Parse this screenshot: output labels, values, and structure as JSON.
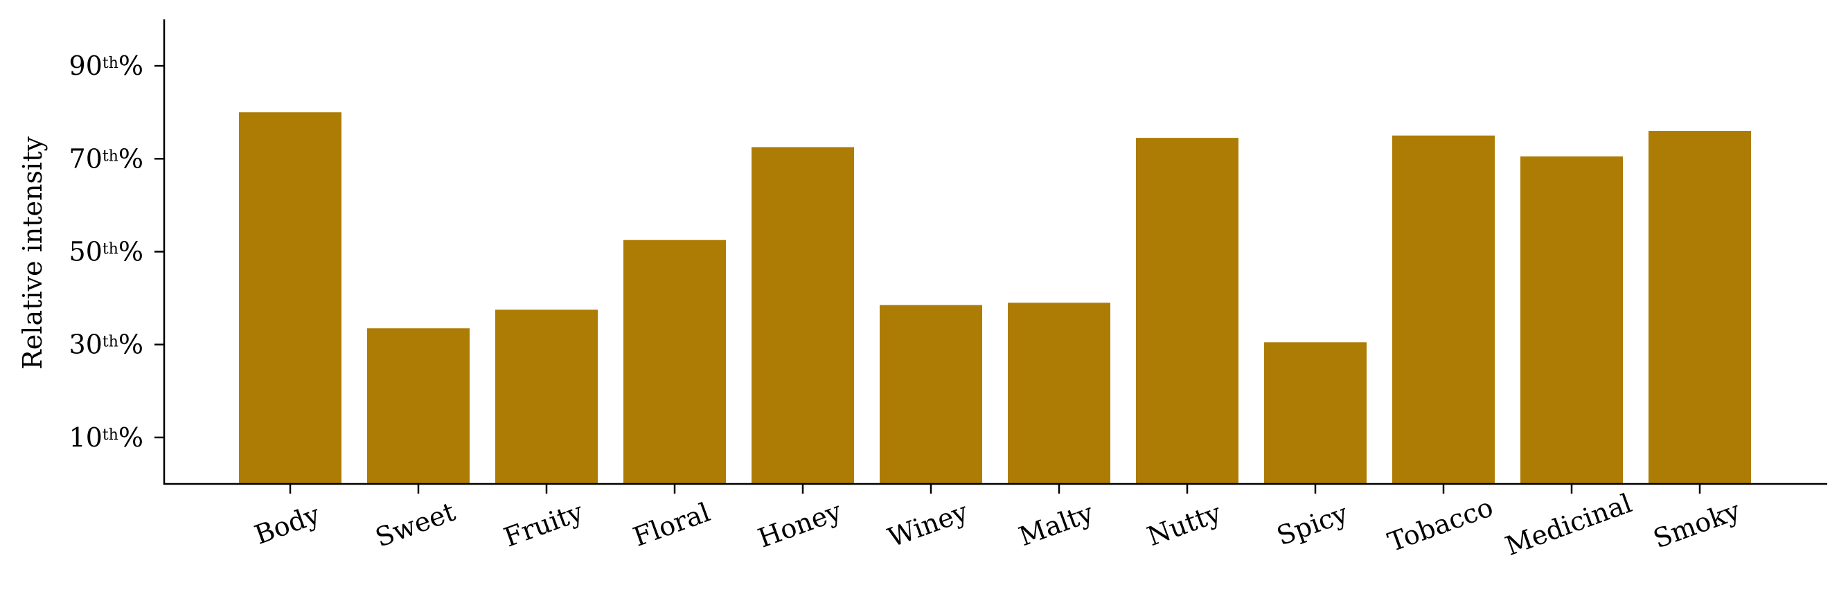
{
  "chart_data": {
    "type": "bar",
    "title": "",
    "xlabel": "",
    "ylabel": "Relative intensity",
    "categories": [
      "Body",
      "Sweet",
      "Fruity",
      "Floral",
      "Honey",
      "Winey",
      "Malty",
      "Nutty",
      "Spicy",
      "Tobacco",
      "Medicinal",
      "Smoky"
    ],
    "values": [
      80,
      33.5,
      37.5,
      52.5,
      72.5,
      38.5,
      39,
      74.5,
      30.5,
      75,
      70.5,
      76
    ],
    "ylim": [
      0,
      100
    ],
    "yticks": [
      {
        "value": 10,
        "base": "10",
        "sup": "th",
        "suffix": "%"
      },
      {
        "value": 30,
        "base": "30",
        "sup": "th",
        "suffix": "%"
      },
      {
        "value": 50,
        "base": "50",
        "sup": "th",
        "suffix": "%"
      },
      {
        "value": 70,
        "base": "70",
        "sup": "th",
        "suffix": "%"
      },
      {
        "value": 90,
        "base": "90",
        "sup": "th",
        "suffix": "%"
      }
    ],
    "bar_color": "#ad7c04",
    "axis_color": "#000000",
    "grid": false,
    "legend": "none",
    "xtick_rotation": 20
  }
}
